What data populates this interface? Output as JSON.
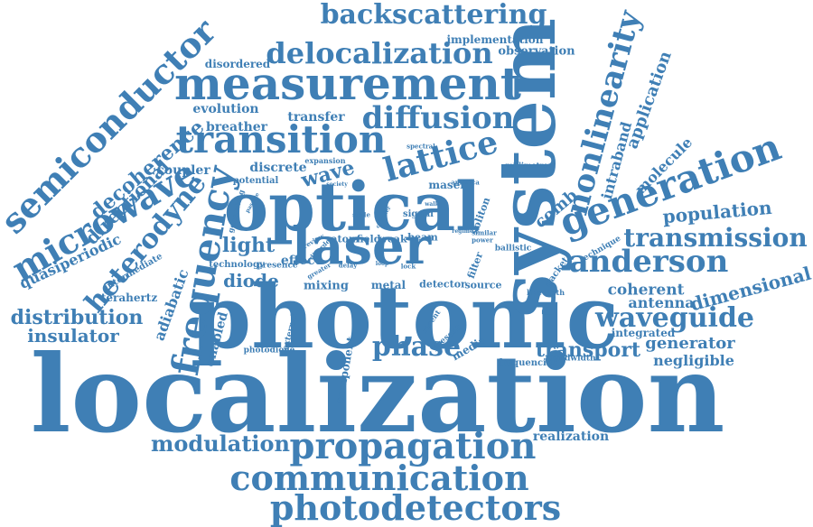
{
  "palette": {
    "word_color": "#3f7fb5",
    "background": "#ffffff"
  },
  "words": [
    "localization",
    "photonic",
    "system",
    "optical",
    "laser",
    "measurement",
    "frequency",
    "generation",
    "transition",
    "propagation",
    "communication",
    "photodetectors",
    "microwave",
    "semiconductor",
    "delocalization",
    "backscattering",
    "lattice",
    "diffusion",
    "nonlinearity",
    "anderson",
    "transmission",
    "waveguide",
    "heterodyne",
    "phase",
    "modulation",
    "transport",
    "population",
    "dimensional",
    "distribution",
    "light",
    "diode",
    "wave",
    "decoherence",
    "directional",
    "insulator",
    "generator",
    "coherent",
    "antenna",
    "comb",
    "application",
    "molecule",
    "intraband",
    "negligible",
    "quasiperiodic",
    "adiabatic",
    "enabled",
    "realization",
    "implementation",
    "observation",
    "disordered",
    "evolution",
    "breather",
    "transfer",
    "discrete",
    "coupler",
    "potential",
    "effect",
    "mixing",
    "metal",
    "detector",
    "source",
    "soliton",
    "filter",
    "maser",
    "media",
    "atom",
    "field",
    "weak",
    "beam",
    "signal",
    "terahertz",
    "component",
    "technology",
    "presence",
    "intermediate",
    "external",
    "photodiode",
    "integrated",
    "frequencies",
    "bandwidth",
    "linewidth",
    "ballistic",
    "technique",
    "packet",
    "present",
    "recent",
    "generating",
    "expansion",
    "spectral",
    "millimetre",
    "america",
    "society",
    "scale",
    "delay",
    "review",
    "lock",
    "power",
    "similar",
    "regime",
    "walk",
    "cylinder",
    "disorder",
    "greater",
    "loop",
    "passive"
  ]
}
